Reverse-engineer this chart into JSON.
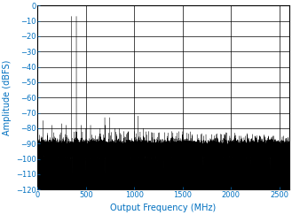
{
  "title": "",
  "xlabel": "Output Frequency (MHz)",
  "ylabel": "Amplitude (dBFS)",
  "xlim": [
    0,
    2600
  ],
  "ylim": [
    -120,
    0
  ],
  "xticks": [
    0,
    500,
    1000,
    1500,
    2000,
    2500
  ],
  "yticks": [
    0,
    -10,
    -20,
    -30,
    -40,
    -50,
    -60,
    -70,
    -80,
    -90,
    -100,
    -110,
    -120
  ],
  "tone1_freq": 347,
  "tone2_freq": 400,
  "noise_floor": -94,
  "noise_std": 2.5,
  "axis_color": "#0070C0",
  "tick_color": "#0070C0",
  "label_color": "#0070C0",
  "signal_color": "#000000",
  "bg_color": "#ffffff",
  "grid_color": "#000000",
  "figsize": [
    3.29,
    2.43
  ],
  "dpi": 100,
  "xlabel_fontsize": 7,
  "ylabel_fontsize": 7,
  "tick_fontsize": 6
}
